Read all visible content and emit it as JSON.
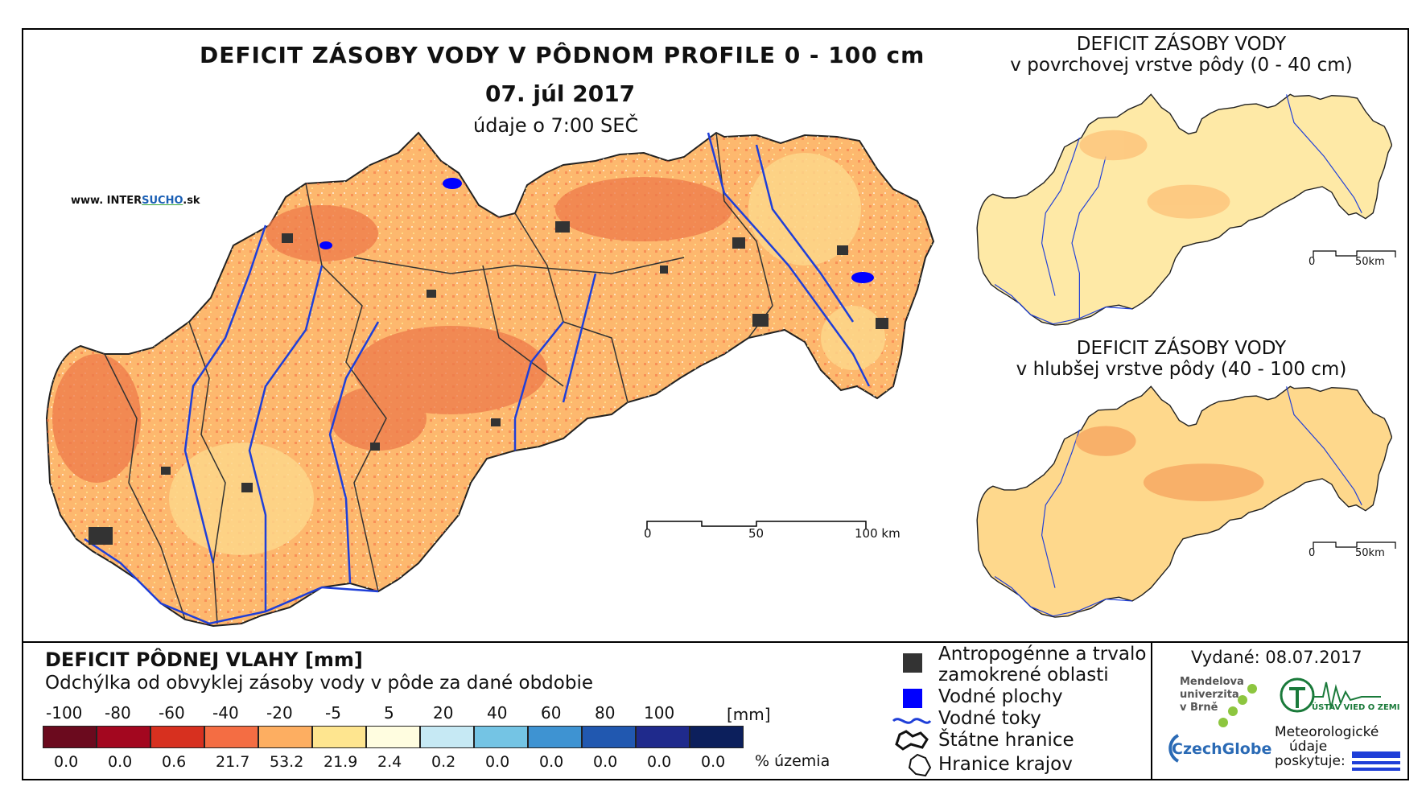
{
  "main": {
    "title": "DEFICIT ZÁSOBY VODY V PÔDNOM PROFILE 0 - 100 cm",
    "date": "07. júl 2017",
    "time": "údaje o 7:00 SEČ",
    "website_prefix": "www. INTER",
    "website_highlight": "SUCHO",
    "website_suffix": ".sk",
    "scale": [
      "0",
      "50",
      "100 km"
    ]
  },
  "insets": [
    {
      "title_line1": "DEFICIT ZÁSOBY VODY",
      "title_line2": "v povrchovej vrstve pôdy (0 - 40 cm)",
      "scale": [
        "0",
        "50km"
      ]
    },
    {
      "title_line1": "DEFICIT ZÁSOBY VODY",
      "title_line2": "v hlubšej vrstve pôdy (40 - 100 cm)",
      "scale": [
        "0",
        "50km"
      ]
    }
  ],
  "legend": {
    "title": "DEFICIT PÔDNEJ VLAHY [mm]",
    "subtitle": "Odchýlka od obvyklej zásoby vody v pôde za dané obdobie",
    "unit": "[mm]",
    "percent_label": "% územia",
    "classes": [
      {
        "label": "-100",
        "color": "#6b0a1e",
        "percent": "0.0"
      },
      {
        "label": "-80",
        "color": "#a3071f",
        "percent": "0.0"
      },
      {
        "label": "-60",
        "color": "#d7301f",
        "percent": "0.6"
      },
      {
        "label": "-40",
        "color": "#f46d43",
        "percent": "21.7"
      },
      {
        "label": "-20",
        "color": "#fdae61",
        "percent": "53.2"
      },
      {
        "label": "-5",
        "color": "#fee58f",
        "percent": "21.9"
      },
      {
        "label": "5",
        "color": "#fffde0",
        "percent": "2.4"
      },
      {
        "label": "20",
        "color": "#c6e9f4",
        "percent": "0.2"
      },
      {
        "label": "40",
        "color": "#74c4e4",
        "percent": "0.0"
      },
      {
        "label": "60",
        "color": "#3e93d2",
        "percent": "0.0"
      },
      {
        "label": "80",
        "color": "#2158b0",
        "percent": "0.0"
      },
      {
        "label": "100",
        "color": "#1f2a8c",
        "percent": "0.0"
      },
      {
        "label": "",
        "color": "#0c1f5c",
        "percent": "0.0"
      }
    ]
  },
  "map_legend": {
    "urban_line1": "Antropogénne a trvalo",
    "urban_line2": "zamokrené oblasti",
    "water": "Vodné plochy",
    "rivers": "Vodné toky",
    "border": "Štátne hranice",
    "regions": "Hranice krajov",
    "urban_color": "#333333",
    "water_color": "#0000ff",
    "river_color": "#1f3fd8"
  },
  "issued": {
    "label": "Vydané: 08.07.2017",
    "mendel_line1": "Mendelova",
    "mendel_line2": "univerzita",
    "mendel_line3": "v Brně",
    "czechglobe": "CzechGlobe",
    "uvgz": "ÚSTAV VIED O ZEMI",
    "meteo_line1": "Meteorologické",
    "meteo_line2": "údaje",
    "meteo_line3": "poskytuje:"
  }
}
